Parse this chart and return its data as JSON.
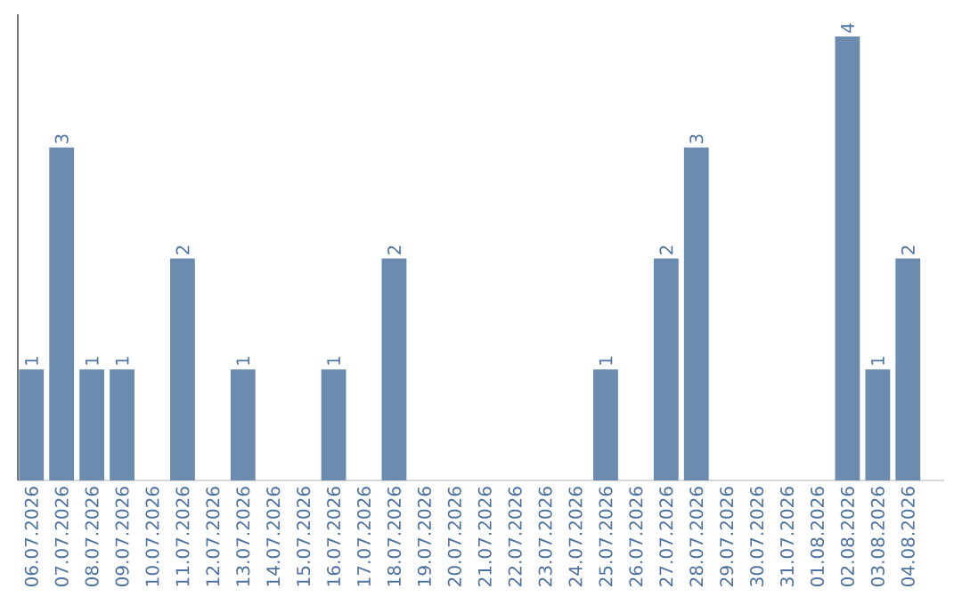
{
  "chart_data": {
    "type": "bar",
    "categories": [
      "06.07.2026",
      "07.07.2026",
      "08.07.2026",
      "09.07.2026",
      "10.07.2026",
      "11.07.2026",
      "12.07.2026",
      "13.07.2026",
      "14.07.2026",
      "15.07.2026",
      "16.07.2026",
      "17.07.2026",
      "18.07.2026",
      "19.07.2026",
      "20.07.2026",
      "21.07.2026",
      "22.07.2026",
      "23.07.2026",
      "24.07.2026",
      "25.07.2026",
      "26.07.2026",
      "27.07.2026",
      "28.07.2026",
      "29.07.2026",
      "30.07.2026",
      "31.07.2026",
      "01.08.2026",
      "02.08.2026",
      "03.08.2026",
      "04.08.2026"
    ],
    "values": [
      1,
      3,
      1,
      1,
      0,
      2,
      0,
      1,
      0,
      0,
      1,
      0,
      2,
      0,
      0,
      0,
      0,
      0,
      0,
      1,
      0,
      2,
      3,
      0,
      0,
      0,
      0,
      4,
      1,
      2
    ],
    "value_labels": [
      "1",
      "3",
      "1",
      "1",
      null,
      "2",
      null,
      "1",
      null,
      null,
      "1",
      null,
      "2",
      null,
      null,
      null,
      null,
      null,
      null,
      "1",
      null,
      "2",
      "3",
      null,
      null,
      null,
      null,
      "4",
      "1",
      "2"
    ],
    "color": "#6b8cae",
    "ylim": [
      0,
      4.2
    ],
    "tick_labels": "x",
    "grid": false
  }
}
